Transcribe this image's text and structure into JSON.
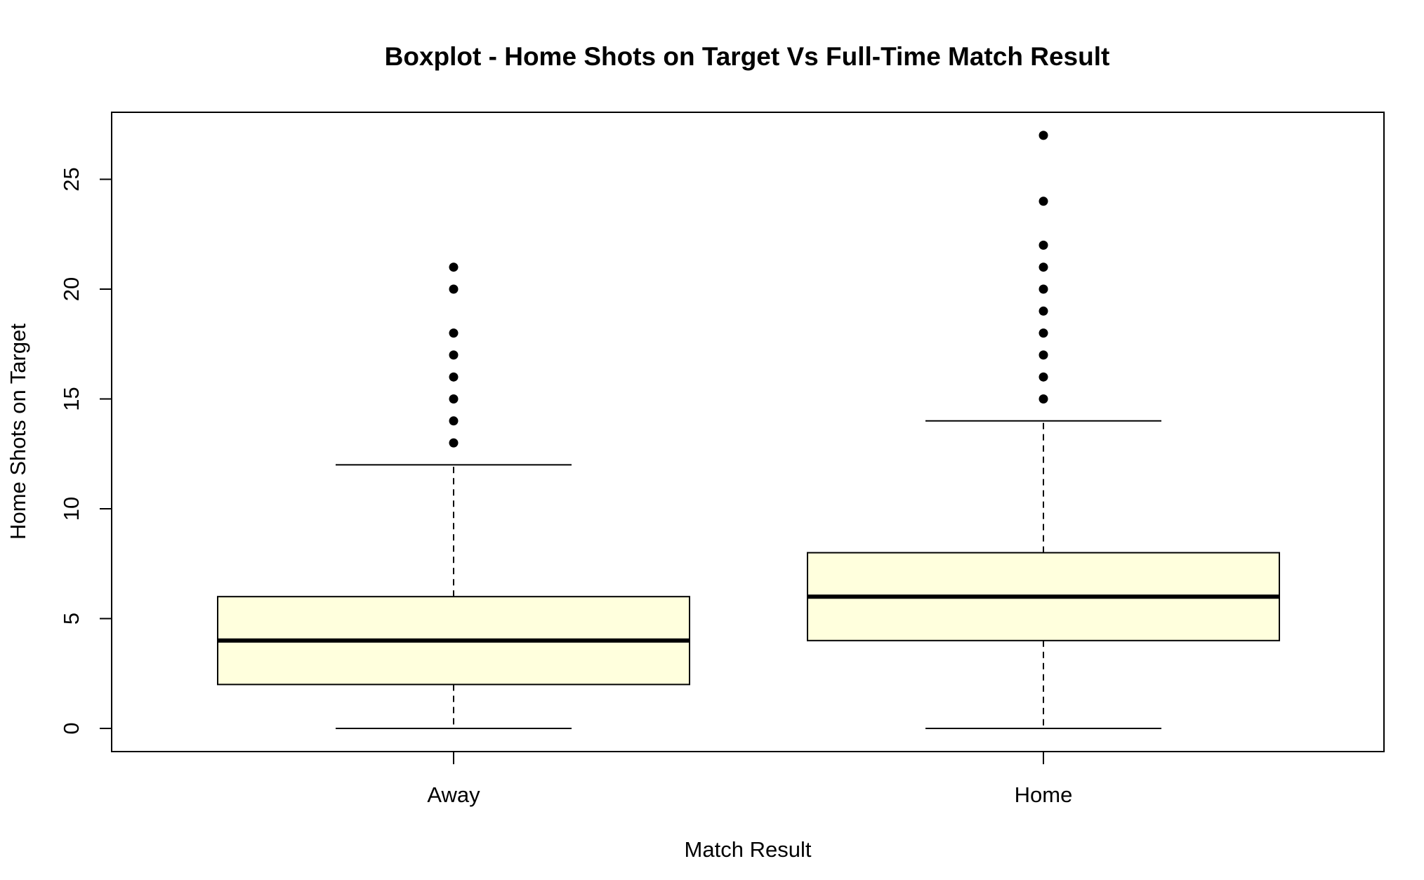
{
  "chart_data": {
    "type": "boxplot",
    "title": "Boxplot - Home Shots on Target Vs Full-Time Match Result",
    "xlabel": "Match Result",
    "ylabel": "Home Shots on Target",
    "ylim": [
      -1.1,
      28
    ],
    "y_ticks": [
      0,
      5,
      10,
      15,
      20,
      25
    ],
    "grid": false,
    "legend": "none",
    "box_fill": "#FFFFDD",
    "categories": [
      "Away",
      "Home"
    ],
    "boxes": [
      {
        "category": "Away",
        "whisker_low": 0,
        "q1": 2,
        "median": 4,
        "q3": 6,
        "whisker_high": 12,
        "outliers": [
          13,
          14,
          15,
          16,
          17,
          18,
          20,
          21
        ]
      },
      {
        "category": "Home",
        "whisker_low": 0,
        "q1": 4,
        "median": 6,
        "q3": 8,
        "whisker_high": 14,
        "outliers": [
          15,
          16,
          17,
          18,
          19,
          20,
          21,
          22,
          24,
          27
        ]
      }
    ]
  }
}
